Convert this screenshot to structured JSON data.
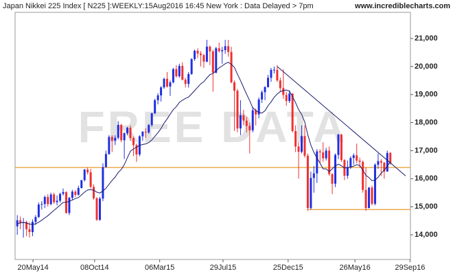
{
  "chart_data": {
    "type": "candlestick",
    "title": "Japan Nikkei 225 Index [ N225 ]:WEEKLY:15Aug2016 16:45 New York : Data Delayed > 7pm",
    "source": "www.incrediblecharts.com",
    "watermark": "FREE DATA",
    "up_color": "#1f2fe0",
    "down_color": "#f03030",
    "ma_color": "#1a1a6e",
    "trend_color": "#1a1a6e",
    "level_color": "#e89a2a",
    "xlim": [
      "2014-04-09",
      "2016-09-30"
    ],
    "xticks": [
      {
        "value": "2014-05-20",
        "label": "20May14"
      },
      {
        "value": "2014-10-08",
        "label": "08Oct14"
      },
      {
        "value": "2015-03-06",
        "label": "06Mar15"
      },
      {
        "value": "2015-07-29",
        "label": "29Jul15"
      },
      {
        "value": "2015-12-25",
        "label": "25Dec15"
      },
      {
        "value": "2016-05-26",
        "label": "26May16"
      },
      {
        "value": "2016-09-29",
        "label": "29Sep16"
      }
    ],
    "ylim": [
      13120,
      21930
    ],
    "yticks": [
      {
        "value": 14000,
        "label": "14,000"
      },
      {
        "value": 15000,
        "label": "15,000"
      },
      {
        "value": 16000,
        "label": "16,000"
      },
      {
        "value": 17000,
        "label": "17,000"
      },
      {
        "value": 18000,
        "label": "18,000"
      },
      {
        "value": 19000,
        "label": "19,000"
      },
      {
        "value": 20000,
        "label": "20,000"
      },
      {
        "value": 21000,
        "label": "21,000"
      }
    ],
    "x": [
      "2014-04-14",
      "2014-04-21",
      "2014-04-28",
      "2014-05-05",
      "2014-05-12",
      "2014-05-19",
      "2014-05-26",
      "2014-06-02",
      "2014-06-09",
      "2014-06-16",
      "2014-06-23",
      "2014-06-30",
      "2014-07-07",
      "2014-07-14",
      "2014-07-21",
      "2014-07-28",
      "2014-08-04",
      "2014-08-11",
      "2014-08-18",
      "2014-08-25",
      "2014-09-01",
      "2014-09-08",
      "2014-09-15",
      "2014-09-22",
      "2014-09-29",
      "2014-10-06",
      "2014-10-13",
      "2014-10-20",
      "2014-10-27",
      "2014-11-03",
      "2014-11-10",
      "2014-11-17",
      "2014-11-24",
      "2014-12-01",
      "2014-12-08",
      "2014-12-15",
      "2014-12-22",
      "2014-12-29",
      "2015-01-05",
      "2015-01-12",
      "2015-01-19",
      "2015-01-26",
      "2015-02-02",
      "2015-02-09",
      "2015-02-16",
      "2015-02-23",
      "2015-03-02",
      "2015-03-09",
      "2015-03-16",
      "2015-03-23",
      "2015-03-30",
      "2015-04-06",
      "2015-04-13",
      "2015-04-20",
      "2015-04-27",
      "2015-05-04",
      "2015-05-11",
      "2015-05-18",
      "2015-05-25",
      "2015-06-01",
      "2015-06-08",
      "2015-06-15",
      "2015-06-22",
      "2015-06-29",
      "2015-07-06",
      "2015-07-13",
      "2015-07-20",
      "2015-07-27",
      "2015-08-03",
      "2015-08-10",
      "2015-08-17",
      "2015-08-24",
      "2015-08-31",
      "2015-09-07",
      "2015-09-14",
      "2015-09-21",
      "2015-09-28",
      "2015-10-05",
      "2015-10-12",
      "2015-10-19",
      "2015-10-26",
      "2015-11-02",
      "2015-11-09",
      "2015-11-16",
      "2015-11-23",
      "2015-11-30",
      "2015-12-07",
      "2015-12-14",
      "2015-12-21",
      "2015-12-28",
      "2016-01-04",
      "2016-01-11",
      "2016-01-18",
      "2016-01-25",
      "2016-02-01",
      "2016-02-08",
      "2016-02-15",
      "2016-02-22",
      "2016-02-29",
      "2016-03-07",
      "2016-03-14",
      "2016-03-21",
      "2016-03-28",
      "2016-04-04",
      "2016-04-11",
      "2016-04-18",
      "2016-04-25",
      "2016-05-02",
      "2016-05-09",
      "2016-05-16",
      "2016-05-23",
      "2016-05-30",
      "2016-06-06",
      "2016-06-13",
      "2016-06-20",
      "2016-06-27",
      "2016-07-04",
      "2016-07-11",
      "2016-07-18",
      "2016-07-25",
      "2016-08-01",
      "2016-08-08",
      "2016-08-15"
    ],
    "open": [
      14300,
      14516,
      14429,
      14457,
      14199,
      14096,
      14462,
      14632,
      15077,
      15097,
      15349,
      15095,
      15437,
      15164,
      15215,
      15457,
      15523,
      14778,
      15318,
      15539,
      15424,
      15668,
      15948,
      16321,
      16229,
      15708,
      15300,
      14532,
      15291,
      16413,
      16880,
      17490,
      17357,
      17459,
      17920,
      17371,
      17621,
      17818,
      17450,
      17197,
      16864,
      17511,
      17674,
      17648,
      17913,
      18332,
      18797,
      18971,
      19254,
      19560,
      19286,
      19435,
      19907,
      19652,
      20020,
      19531,
      19379,
      19732,
      20264,
      20563,
      20460,
      20407,
      20174,
      20706,
      20539,
      19780,
      20650,
      20544,
      20585,
      20724,
      20519,
      19435,
      19136,
      17792,
      18264,
      18070,
      17880,
      17725,
      18438,
      18291,
      18825,
      19083,
      19265,
      19596,
      19879,
      19883,
      19504,
      19230,
      18986,
      18769,
      19033,
      17697,
      17147,
      16958,
      17518,
      16819,
      14952,
      16026,
      16188,
      16974,
      16938,
      16724,
      17002,
      16164,
      15821,
      16848,
      17572,
      16666,
      16106,
      16412,
      16736,
      16834,
      16642,
      16601,
      15600,
      14952,
      15682,
      15106,
      16497,
      16627,
      16569,
      16254,
      16919
    ],
    "high": [
      14700,
      14650,
      14600,
      14500,
      14450,
      14550,
      14700,
      15150,
      15200,
      15400,
      15450,
      15500,
      15500,
      15400,
      15500,
      15650,
      15550,
      15350,
      15600,
      15600,
      15750,
      15950,
      16350,
      16400,
      16350,
      15800,
      15350,
      15350,
      16550,
      17000,
      17550,
      17550,
      17550,
      18050,
      17950,
      17650,
      17850,
      17900,
      17500,
      17250,
      17550,
      17700,
      17800,
      17950,
      18350,
      18850,
      19050,
      19300,
      19600,
      19800,
      19500,
      19950,
      20050,
      20100,
      20150,
      19600,
      19800,
      20300,
      20600,
      20650,
      20550,
      20450,
      20950,
      20750,
      20600,
      20700,
      20850,
      20700,
      20950,
      20950,
      20700,
      19500,
      19200,
      18800,
      18450,
      18200,
      18000,
      18550,
      18500,
      18900,
      19150,
      19300,
      19700,
      19950,
      20000,
      20050,
      19600,
      19900,
      19100,
      19150,
      19050,
      17900,
      17300,
      17900,
      17900,
      16900,
      16250,
      16450,
      17050,
      17050,
      17300,
      17100,
      17150,
      16200,
      16900,
      17600,
      17600,
      16700,
      16650,
      16800,
      16900,
      17250,
      16750,
      16650,
      16400,
      15700,
      15750,
      16550,
      16900,
      16700,
      16600,
      17000,
      16950
    ],
    "low": [
      14000,
      14200,
      13900,
      13950,
      13900,
      13950,
      14350,
      14600,
      14900,
      14950,
      15000,
      15050,
      15100,
      15050,
      15150,
      15400,
      14750,
      14700,
      15250,
      15350,
      15400,
      15650,
      15900,
      16150,
      15650,
      15250,
      14500,
      14500,
      15200,
      16400,
      16850,
      16950,
      17200,
      17400,
      17300,
      16700,
      17550,
      17350,
      16800,
      16600,
      16800,
      17350,
      17450,
      17600,
      17850,
      18300,
      18650,
      18750,
      19200,
      19250,
      18950,
      19400,
      19600,
      19600,
      19500,
      19250,
      19250,
      19700,
      20200,
      20300,
      20000,
      19950,
      20150,
      20050,
      19100,
      19750,
      20500,
      20100,
      20450,
      20350,
      19400,
      17700,
      17650,
      17550,
      17900,
      17650,
      16900,
      17650,
      17900,
      18150,
      18700,
      18800,
      19250,
      19450,
      19750,
      19450,
      19100,
      18850,
      18600,
      18700,
      17650,
      16950,
      16000,
      16900,
      16750,
      14850,
      14900,
      15500,
      15850,
      16550,
      16600,
      16650,
      16100,
      15450,
      15700,
      16700,
      16600,
      15950,
      16000,
      16350,
      16500,
      16550,
      16400,
      15500,
      14850,
      14950,
      15050,
      15050,
      16350,
      16100,
      16000,
      16250,
      16500
    ],
    "close": [
      14516,
      14429,
      14457,
      14199,
      14096,
      14462,
      14632,
      15077,
      15097,
      15349,
      15095,
      15437,
      15164,
      15215,
      15457,
      15523,
      14778,
      15318,
      15539,
      15424,
      15668,
      15948,
      16321,
      16229,
      15708,
      15300,
      14532,
      15291,
      16413,
      16880,
      17490,
      17357,
      17459,
      17920,
      17371,
      17621,
      17818,
      17450,
      17197,
      16864,
      17511,
      17674,
      17648,
      17913,
      18332,
      18797,
      18971,
      19254,
      19560,
      19286,
      19435,
      19907,
      19652,
      20020,
      19531,
      19379,
      19732,
      20264,
      20563,
      20460,
      20407,
      20174,
      20706,
      20539,
      19780,
      20650,
      20544,
      20585,
      20724,
      20519,
      19435,
      19136,
      17792,
      18264,
      18070,
      17880,
      17725,
      18438,
      18291,
      18825,
      19083,
      19265,
      19596,
      19879,
      19883,
      19504,
      19230,
      18986,
      18769,
      19033,
      17697,
      17147,
      16958,
      17518,
      16819,
      14952,
      16026,
      16188,
      16974,
      16938,
      16724,
      17002,
      16164,
      15821,
      16848,
      17572,
      16666,
      16106,
      16412,
      16736,
      16834,
      16642,
      16601,
      15600,
      14952,
      15682,
      15106,
      16497,
      16627,
      16569,
      16254,
      16919,
      16545
    ],
    "ma": [
      14400,
      14420,
      14440,
      14420,
      14380,
      14370,
      14390,
      14450,
      14520,
      14600,
      14680,
      14780,
      14870,
      14960,
      15060,
      15150,
      15160,
      15190,
      15240,
      15290,
      15330,
      15420,
      15520,
      15600,
      15610,
      15590,
      15520,
      15490,
      15560,
      15660,
      15800,
      15940,
      16060,
      16220,
      16330,
      16500,
      16750,
      16980,
      17060,
      17120,
      17190,
      17220,
      17240,
      17290,
      17380,
      17510,
      17640,
      17790,
      17980,
      18130,
      18300,
      18460,
      18570,
      18720,
      18800,
      18860,
      18910,
      19020,
      19140,
      19260,
      19380,
      19460,
      19590,
      19710,
      19750,
      19850,
      19950,
      20020,
      20100,
      20150,
      20080,
      19970,
      19720,
      19500,
      19250,
      19010,
      18780,
      18530,
      18430,
      18360,
      18340,
      18420,
      18600,
      18740,
      18900,
      19020,
      19100,
      19140,
      19160,
      19120,
      18930,
      18710,
      18460,
      18290,
      18020,
      17570,
      17200,
      16940,
      16740,
      16550,
      16350,
      16350,
      16250,
      16350,
      16450,
      16520,
      16460,
      16380,
      16400,
      16410,
      16450,
      16500,
      16470,
      16300,
      16120,
      16040,
      15930,
      15950,
      16050,
      16200,
      16300,
      16450,
      16600
    ],
    "trendline": {
      "x": [
        "2015-11-30",
        "2016-09-19"
      ],
      "values": [
        20000,
        16100
      ]
    },
    "levels": [
      {
        "value": 16400,
        "from": "2014-04-09"
      },
      {
        "value": 14900,
        "from": "2016-02-08"
      }
    ]
  }
}
